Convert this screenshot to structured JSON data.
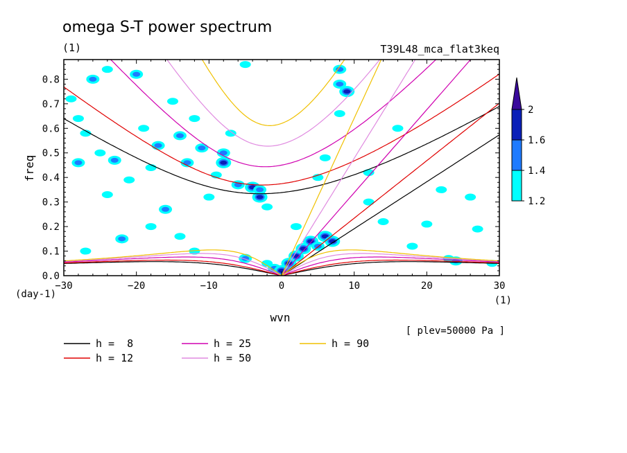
{
  "chart_data": {
    "type": "heatmap",
    "title": "omega S-T power spectrum",
    "units_left": "(1)",
    "experiment": "T39L48_mca_flat3keq",
    "xlabel": "wvn",
    "ylabel": "freq",
    "y_units": "(day-1)",
    "x_units": "(1)",
    "level_note": "[ plev=50000 Pa ]",
    "xlim": [
      -30,
      30
    ],
    "ylim": [
      0,
      0.88
    ],
    "x_ticks": [
      "-30",
      "-20",
      "-10",
      "0",
      "10",
      "20",
      "30"
    ],
    "y_ticks": [
      "0.0",
      "0.1",
      "0.2",
      "0.3",
      "0.4",
      "0.5",
      "0.6",
      "0.7",
      "0.8"
    ],
    "colorbar": {
      "levels": [
        "1.2",
        "1.4",
        "1.6",
        "2"
      ],
      "colors": [
        "#00ffff",
        "#1e7bff",
        "#0a1fb8",
        "#3a0a9c"
      ]
    },
    "dispersion_curves": [
      {
        "label": "h =  8",
        "h": 8,
        "color": "#000000"
      },
      {
        "label": "h = 12",
        "h": 12,
        "color": "#e00000"
      },
      {
        "label": "h = 25",
        "h": 25,
        "color": "#d000b0"
      },
      {
        "label": "h = 50",
        "h": 50,
        "color": "#e08ae0"
      },
      {
        "label": "h = 90",
        "h": 90,
        "color": "#f0c000"
      }
    ],
    "power_blobs": [
      {
        "k": -29,
        "f": 0.72,
        "lvl": 0
      },
      {
        "k": -28,
        "f": 0.64,
        "lvl": 0
      },
      {
        "k": -28,
        "f": 0.46,
        "lvl": 1
      },
      {
        "k": -27,
        "f": 0.58,
        "lvl": 0
      },
      {
        "k": -26,
        "f": 0.8,
        "lvl": 1
      },
      {
        "k": -25,
        "f": 0.5,
        "lvl": 0
      },
      {
        "k": -24,
        "f": 0.84,
        "lvl": 0
      },
      {
        "k": -23,
        "f": 0.47,
        "lvl": 1
      },
      {
        "k": -22,
        "f": 0.15,
        "lvl": 1
      },
      {
        "k": -21,
        "f": 0.39,
        "lvl": 0
      },
      {
        "k": -20,
        "f": 0.82,
        "lvl": 1
      },
      {
        "k": -19,
        "f": 0.6,
        "lvl": 0
      },
      {
        "k": -18,
        "f": 0.44,
        "lvl": 0
      },
      {
        "k": -17,
        "f": 0.53,
        "lvl": 1
      },
      {
        "k": -16,
        "f": 0.27,
        "lvl": 1
      },
      {
        "k": -15,
        "f": 0.71,
        "lvl": 0
      },
      {
        "k": -14,
        "f": 0.57,
        "lvl": 1
      },
      {
        "k": -13,
        "f": 0.46,
        "lvl": 1
      },
      {
        "k": -12,
        "f": 0.64,
        "lvl": 0
      },
      {
        "k": -11,
        "f": 0.52,
        "lvl": 1
      },
      {
        "k": -10,
        "f": 0.32,
        "lvl": 0
      },
      {
        "k": -9,
        "f": 0.41,
        "lvl": 0
      },
      {
        "k": -8,
        "f": 0.5,
        "lvl": 1
      },
      {
        "k": -8,
        "f": 0.46,
        "lvl": 2
      },
      {
        "k": -7,
        "f": 0.58,
        "lvl": 0
      },
      {
        "k": -6,
        "f": 0.37,
        "lvl": 1
      },
      {
        "k": -5,
        "f": 0.86,
        "lvl": 0
      },
      {
        "k": -5,
        "f": 0.07,
        "lvl": 1
      },
      {
        "k": -4,
        "f": 0.36,
        "lvl": 2
      },
      {
        "k": -3,
        "f": 0.32,
        "lvl": 2
      },
      {
        "k": -3,
        "f": 0.35,
        "lvl": 1
      },
      {
        "k": -2,
        "f": 0.28,
        "lvl": 0
      },
      {
        "k": -2,
        "f": 0.05,
        "lvl": 0
      },
      {
        "k": -1,
        "f": 0.03,
        "lvl": 1
      },
      {
        "k": 0,
        "f": 0.02,
        "lvl": 2
      },
      {
        "k": 1,
        "f": 0.05,
        "lvl": 2
      },
      {
        "k": 2,
        "f": 0.08,
        "lvl": 2
      },
      {
        "k": 3,
        "f": 0.11,
        "lvl": 2
      },
      {
        "k": 4,
        "f": 0.14,
        "lvl": 2
      },
      {
        "k": 5,
        "f": 0.12,
        "lvl": 1
      },
      {
        "k": 6,
        "f": 0.16,
        "lvl": 2
      },
      {
        "k": 7,
        "f": 0.14,
        "lvl": 2
      },
      {
        "k": 8,
        "f": 0.78,
        "lvl": 1
      },
      {
        "k": 8,
        "f": 0.66,
        "lvl": 0
      },
      {
        "k": 9,
        "f": 0.75,
        "lvl": 2
      },
      {
        "k": 8,
        "f": 0.84,
        "lvl": 1
      },
      {
        "k": 5,
        "f": 0.4,
        "lvl": 0
      },
      {
        "k": 6,
        "f": 0.48,
        "lvl": 0
      },
      {
        "k": 12,
        "f": 0.3,
        "lvl": 0
      },
      {
        "k": 12,
        "f": 0.42,
        "lvl": 0
      },
      {
        "k": 14,
        "f": 0.22,
        "lvl": 0
      },
      {
        "k": 18,
        "f": 0.12,
        "lvl": 0
      },
      {
        "k": 20,
        "f": 0.21,
        "lvl": 0
      },
      {
        "k": 22,
        "f": 0.35,
        "lvl": 0
      },
      {
        "k": 23,
        "f": 0.07,
        "lvl": 0
      },
      {
        "k": 24,
        "f": 0.06,
        "lvl": 1
      },
      {
        "k": 26,
        "f": 0.32,
        "lvl": 0
      },
      {
        "k": 27,
        "f": 0.19,
        "lvl": 0
      },
      {
        "k": 29,
        "f": 0.05,
        "lvl": 0
      },
      {
        "k": 16,
        "f": 0.6,
        "lvl": 0
      },
      {
        "k": -18,
        "f": 0.2,
        "lvl": 0
      },
      {
        "k": -14,
        "f": 0.16,
        "lvl": 0
      },
      {
        "k": -24,
        "f": 0.33,
        "lvl": 0
      },
      {
        "k": -27,
        "f": 0.1,
        "lvl": 0
      },
      {
        "k": -12,
        "f": 0.1,
        "lvl": 0
      },
      {
        "k": 2,
        "f": 0.2,
        "lvl": 0
      }
    ]
  }
}
